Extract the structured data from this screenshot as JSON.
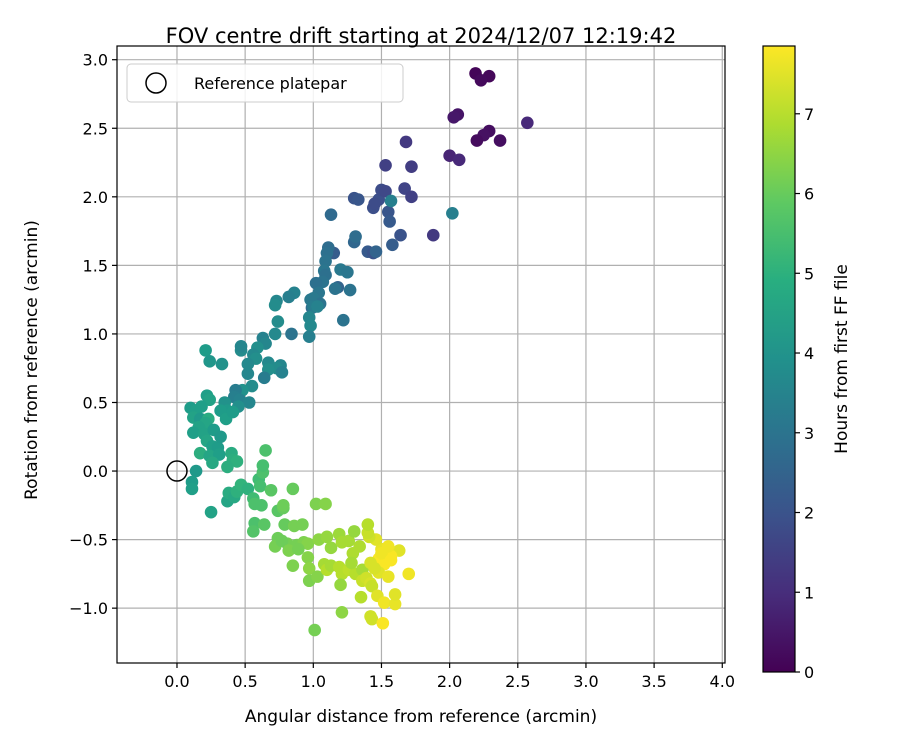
{
  "chart_data": {
    "type": "scatter",
    "title": "FOV centre drift starting at 2024/12/07 12:19:42",
    "xlabel": "Angular distance from reference (arcmin)",
    "ylabel": "Rotation from reference (arcmin)",
    "xlim": [
      -0.44,
      4.02
    ],
    "ylim": [
      -1.4,
      3.1
    ],
    "xticks": [
      "0.0",
      "0.5",
      "1.0",
      "1.5",
      "2.0",
      "2.5",
      "3.0",
      "3.5",
      "4.0"
    ],
    "yticks": [
      "−1.0",
      "−0.5",
      "0.0",
      "0.5",
      "1.0",
      "1.5",
      "2.0",
      "2.5",
      "3.0"
    ],
    "grid": true,
    "legend": {
      "position": "top-left",
      "entries": [
        "Reference platepar"
      ]
    },
    "reference_point": {
      "x": 0.0,
      "y": 0.0
    },
    "colorbar": {
      "label": "Hours from first FF file",
      "min": 0,
      "max": 7.85,
      "ticks": [
        "0",
        "1",
        "2",
        "3",
        "4",
        "5",
        "6",
        "7"
      ],
      "colormap": "viridis"
    },
    "series": [
      {
        "points": [
          [
            2.19,
            2.9,
            0.1
          ],
          [
            2.29,
            2.88,
            0.15
          ],
          [
            2.23,
            2.85,
            0.2
          ],
          [
            2.06,
            2.6,
            0.45
          ],
          [
            2.03,
            2.58,
            0.5
          ],
          [
            2.29,
            2.48,
            0.3
          ],
          [
            2.25,
            2.45,
            0.35
          ],
          [
            2.2,
            2.41,
            0.25
          ],
          [
            2.37,
            2.41,
            0.3
          ],
          [
            2.57,
            2.54,
            0.9
          ],
          [
            2.0,
            2.3,
            0.8
          ],
          [
            2.07,
            2.27,
            0.9
          ],
          [
            1.68,
            2.4,
            1.3
          ],
          [
            1.72,
            2.22,
            1.4
          ],
          [
            1.53,
            2.23,
            1.5
          ],
          [
            1.3,
            1.99,
            2.0
          ],
          [
            1.33,
            1.98,
            2.1
          ],
          [
            1.48,
            1.98,
            1.9
          ],
          [
            1.5,
            2.05,
            1.8
          ],
          [
            1.53,
            2.04,
            1.7
          ],
          [
            1.67,
            2.06,
            1.6
          ],
          [
            1.72,
            2.0,
            1.5
          ],
          [
            1.44,
            1.92,
            1.9
          ],
          [
            1.55,
            1.89,
            2.1
          ],
          [
            1.45,
            1.95,
            1.8
          ],
          [
            1.56,
            1.82,
            2.2
          ],
          [
            1.57,
            1.97,
            3.4
          ],
          [
            2.02,
            1.88,
            3.4
          ],
          [
            1.13,
            1.87,
            2.7
          ],
          [
            1.88,
            1.72,
            1.3
          ],
          [
            1.64,
            1.72,
            2.0
          ],
          [
            1.58,
            1.65,
            2.3
          ],
          [
            1.4,
            1.6,
            2.2
          ],
          [
            1.44,
            1.59,
            2.0
          ],
          [
            1.46,
            1.6,
            2.5
          ],
          [
            1.3,
            1.67,
            2.6
          ],
          [
            1.31,
            1.71,
            2.8
          ],
          [
            1.15,
            1.59,
            2.3
          ],
          [
            1.11,
            1.63,
            2.8
          ],
          [
            1.1,
            1.59,
            2.9
          ],
          [
            1.09,
            1.53,
            3.0
          ],
          [
            1.08,
            1.46,
            3.1
          ],
          [
            1.09,
            1.43,
            2.9
          ],
          [
            1.2,
            1.47,
            3.2
          ],
          [
            1.25,
            1.45,
            3.1
          ],
          [
            1.07,
            1.38,
            3.0
          ],
          [
            1.02,
            1.37,
            2.9
          ],
          [
            1.04,
            1.3,
            3.1
          ],
          [
            1.0,
            1.26,
            3.2
          ],
          [
            1.05,
            1.22,
            3.0
          ],
          [
            1.18,
            1.34,
            2.5
          ],
          [
            1.16,
            1.33,
            3.0
          ],
          [
            1.27,
            1.32,
            3.0
          ],
          [
            1.22,
            1.1,
            3.0
          ],
          [
            0.99,
            1.19,
            2.8
          ],
          [
            0.98,
            1.25,
            3.2
          ],
          [
            1.0,
            1.2,
            3.3
          ],
          [
            1.03,
            1.2,
            3.5
          ],
          [
            0.97,
            1.12,
            3.6
          ],
          [
            0.98,
            1.06,
            3.7
          ],
          [
            0.97,
            0.98,
            3.4
          ],
          [
            0.86,
            1.3,
            3.5
          ],
          [
            0.82,
            1.27,
            3.4
          ],
          [
            0.73,
            1.24,
            3.6
          ],
          [
            0.72,
            1.21,
            3.8
          ],
          [
            0.74,
            1.09,
            3.8
          ],
          [
            0.72,
            1.0,
            3.7
          ],
          [
            0.63,
            0.97,
            3.5
          ],
          [
            0.65,
            0.93,
            3.6
          ],
          [
            0.59,
            0.9,
            3.9
          ],
          [
            0.56,
            0.85,
            3.7
          ],
          [
            0.47,
            0.88,
            3.8
          ],
          [
            0.47,
            0.91,
            3.6
          ],
          [
            0.58,
            0.82,
            3.9
          ],
          [
            0.84,
            1.0,
            3.0
          ],
          [
            0.76,
            0.77,
            3.6
          ],
          [
            0.67,
            0.79,
            3.7
          ],
          [
            0.73,
            0.75,
            3.8
          ],
          [
            0.67,
            0.74,
            3.9
          ],
          [
            0.77,
            0.72,
            3.5
          ],
          [
            0.64,
            0.68,
            3.3
          ],
          [
            0.52,
            0.71,
            3.6
          ],
          [
            0.52,
            0.78,
            3.7
          ],
          [
            0.55,
            0.62,
            3.8
          ],
          [
            0.48,
            0.59,
            4.0
          ],
          [
            0.43,
            0.59,
            3.3
          ],
          [
            0.42,
            0.54,
            3.4
          ],
          [
            0.46,
            0.52,
            3.5
          ],
          [
            0.53,
            0.5,
            3.6
          ],
          [
            0.45,
            0.47,
            3.9
          ],
          [
            0.35,
            0.5,
            4.0
          ],
          [
            0.37,
            0.44,
            4.2
          ],
          [
            0.32,
            0.44,
            4.3
          ],
          [
            0.36,
            0.38,
            4.4
          ],
          [
            0.41,
            0.43,
            4.3
          ],
          [
            0.21,
            0.88,
            4.3
          ],
          [
            0.24,
            0.8,
            4.1
          ],
          [
            0.33,
            0.78,
            4.0
          ],
          [
            0.22,
            0.55,
            4.4
          ],
          [
            0.24,
            0.52,
            4.5
          ],
          [
            0.18,
            0.47,
            4.4
          ],
          [
            0.1,
            0.46,
            4.3
          ],
          [
            0.14,
            0.44,
            4.4
          ],
          [
            0.12,
            0.39,
            4.5
          ],
          [
            0.17,
            0.38,
            4.2
          ],
          [
            0.23,
            0.38,
            4.8
          ],
          [
            0.21,
            0.35,
            4.6
          ],
          [
            0.16,
            0.32,
            4.5
          ],
          [
            0.12,
            0.28,
            4.4
          ],
          [
            0.2,
            0.27,
            4.5
          ],
          [
            0.27,
            0.3,
            4.3
          ],
          [
            0.22,
            0.22,
            4.6
          ],
          [
            0.26,
            0.18,
            4.4
          ],
          [
            0.3,
            0.17,
            4.3
          ],
          [
            0.32,
            0.25,
            4.2
          ],
          [
            0.17,
            0.13,
            4.9
          ],
          [
            0.24,
            0.11,
            4.6
          ],
          [
            0.31,
            0.12,
            4.4
          ],
          [
            0.4,
            0.13,
            4.8
          ],
          [
            0.26,
            0.06,
            4.7
          ],
          [
            0.41,
            0.08,
            4.9
          ],
          [
            0.44,
            0.07,
            5.0
          ],
          [
            0.37,
            0.03,
            4.9
          ],
          [
            0.14,
            0.0,
            4.2
          ],
          [
            0.11,
            -0.08,
            4.3
          ],
          [
            0.11,
            -0.13,
            4.4
          ],
          [
            0.25,
            -0.3,
            4.5
          ],
          [
            0.37,
            -0.22,
            4.6
          ],
          [
            0.38,
            -0.16,
            4.8
          ],
          [
            0.42,
            -0.19,
            4.7
          ],
          [
            0.44,
            -0.15,
            5.0
          ],
          [
            0.47,
            -0.1,
            5.1
          ],
          [
            0.52,
            -0.13,
            5.0
          ],
          [
            0.56,
            -0.2,
            5.4
          ],
          [
            0.6,
            -0.06,
            5.4
          ],
          [
            0.63,
            -0.01,
            5.6
          ],
          [
            0.61,
            -0.11,
            5.5
          ],
          [
            0.57,
            -0.24,
            5.6
          ],
          [
            0.62,
            -0.25,
            5.6
          ],
          [
            0.63,
            0.04,
            5.5
          ],
          [
            0.65,
            0.15,
            5.6
          ],
          [
            0.57,
            -0.38,
            5.6
          ],
          [
            0.56,
            -0.44,
            5.7
          ],
          [
            0.64,
            -0.39,
            5.8
          ],
          [
            0.69,
            -0.14,
            5.8
          ],
          [
            0.74,
            -0.29,
            5.8
          ],
          [
            0.78,
            -0.27,
            6.0
          ],
          [
            0.79,
            -0.39,
            6.0
          ],
          [
            0.85,
            -0.13,
            6.0
          ],
          [
            0.78,
            -0.25,
            6.1
          ],
          [
            0.86,
            -0.4,
            6.2
          ],
          [
            0.92,
            -0.39,
            6.2
          ],
          [
            0.74,
            -0.49,
            6.1
          ],
          [
            0.72,
            -0.55,
            6.2
          ],
          [
            0.81,
            -0.53,
            6.2
          ],
          [
            0.77,
            -0.51,
            6.1
          ],
          [
            0.88,
            -0.54,
            6.2
          ],
          [
            0.93,
            -0.52,
            6.3
          ],
          [
            0.96,
            -0.53,
            6.4
          ],
          [
            1.02,
            -0.24,
            6.3
          ],
          [
            1.09,
            -0.24,
            6.4
          ],
          [
            1.04,
            -0.5,
            6.5
          ],
          [
            1.1,
            -0.48,
            6.6
          ],
          [
            1.13,
            -0.56,
            6.6
          ],
          [
            1.19,
            -0.46,
            6.7
          ],
          [
            1.21,
            -0.52,
            6.8
          ],
          [
            0.82,
            -0.58,
            6.3
          ],
          [
            0.89,
            -0.57,
            6.2
          ],
          [
            0.85,
            -0.69,
            6.3
          ],
          [
            0.96,
            -0.63,
            6.4
          ],
          [
            0.97,
            -0.71,
            6.5
          ],
          [
            0.97,
            -0.8,
            6.3
          ],
          [
            1.03,
            -0.77,
            6.4
          ],
          [
            1.08,
            -0.68,
            6.8
          ],
          [
            1.1,
            -0.72,
            7.0
          ],
          [
            1.13,
            -0.69,
            6.8
          ],
          [
            1.19,
            -0.7,
            7.0
          ],
          [
            1.21,
            -0.75,
            7.0
          ],
          [
            1.26,
            -0.72,
            7.1
          ],
          [
            1.31,
            -0.75,
            7.0
          ],
          [
            1.36,
            -0.72,
            6.8
          ],
          [
            1.2,
            -0.83,
            6.6
          ],
          [
            1.21,
            -1.03,
            6.5
          ],
          [
            1.01,
            -1.16,
            6.2
          ],
          [
            1.36,
            -0.8,
            7.2
          ],
          [
            1.39,
            -0.78,
            7.3
          ],
          [
            1.42,
            -0.82,
            7.4
          ],
          [
            1.35,
            -0.92,
            7.0
          ],
          [
            1.42,
            -1.06,
            7.3
          ],
          [
            1.43,
            -1.08,
            7.3
          ],
          [
            1.43,
            -0.84,
            7.2
          ],
          [
            1.47,
            -0.91,
            7.5
          ],
          [
            1.51,
            -1.11,
            7.8
          ],
          [
            1.52,
            -0.96,
            7.7
          ],
          [
            1.6,
            -0.97,
            7.6
          ],
          [
            1.6,
            -0.9,
            7.5
          ],
          [
            1.7,
            -0.75,
            7.7
          ],
          [
            1.63,
            -0.58,
            7.5
          ],
          [
            1.57,
            -0.62,
            7.8
          ],
          [
            1.48,
            -0.64,
            7.8
          ],
          [
            1.52,
            -0.68,
            7.8
          ],
          [
            1.5,
            -0.57,
            7.6
          ],
          [
            1.46,
            -0.5,
            7.5
          ],
          [
            1.41,
            -0.48,
            7.3
          ],
          [
            1.4,
            -0.45,
            7.2
          ],
          [
            1.4,
            -0.39,
            7.0
          ],
          [
            1.34,
            -0.55,
            6.9
          ],
          [
            1.29,
            -0.6,
            6.9
          ],
          [
            1.28,
            -0.67,
            6.8
          ],
          [
            1.26,
            -0.51,
            6.8
          ],
          [
            1.3,
            -0.44,
            6.6
          ],
          [
            1.42,
            -0.67,
            7.4
          ],
          [
            1.48,
            -0.74,
            7.5
          ],
          [
            1.55,
            -0.77,
            7.6
          ],
          [
            1.45,
            -0.71,
            7.4
          ],
          [
            1.5,
            -0.6,
            7.7
          ],
          [
            1.55,
            -0.55,
            7.7
          ],
          [
            1.57,
            -0.65,
            7.8
          ]
        ]
      }
    ]
  }
}
